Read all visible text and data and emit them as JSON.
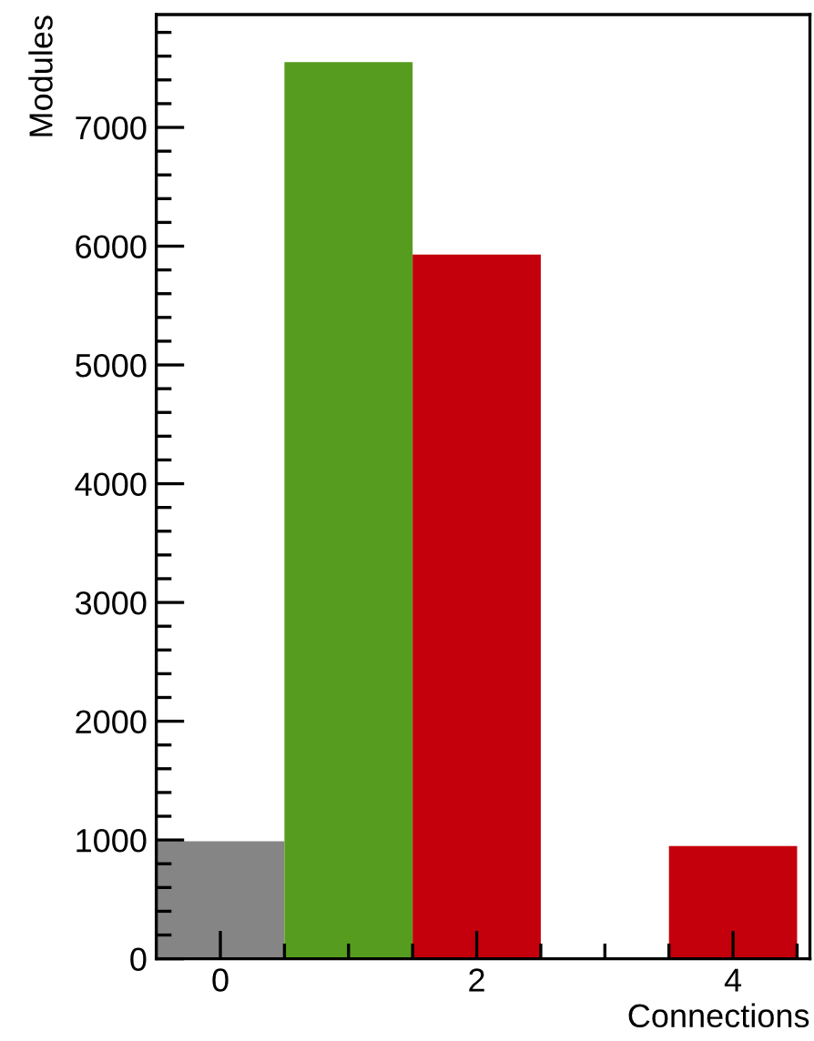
{
  "chart_data": {
    "type": "histogram",
    "xlabel": "Connections",
    "ylabel": "Modules",
    "bins": [
      -0.5,
      0.5,
      1.5,
      2.5,
      3.5,
      4.5
    ],
    "values": [
      990,
      7550,
      5930,
      0,
      950
    ],
    "colors": [
      "#858585",
      "#569c1e",
      "#c3000b",
      "#c3000b",
      "#c3000b"
    ],
    "xlim": [
      -0.5,
      4.6
    ],
    "ylim": [
      0,
      7950
    ],
    "xticks": [
      0,
      2,
      4,
      {
        "value": 0.5,
        "label": null
      },
      {
        "value": 1,
        "label": null
      },
      {
        "value": 1.5,
        "label": null
      },
      {
        "value": 2.5,
        "label": null
      },
      {
        "value": 3,
        "label": null
      },
      {
        "value": 3.5,
        "label": null
      },
      {
        "value": 4.5,
        "label": null
      }
    ],
    "yticks": [
      0,
      1000,
      2000,
      3000,
      4000,
      5000,
      6000,
      7000,
      {
        "value": 200,
        "label": null
      },
      {
        "value": 400,
        "label": null
      },
      {
        "value": 600,
        "label": null
      },
      {
        "value": 800,
        "label": null
      },
      {
        "value": 1200,
        "label": null
      },
      {
        "value": 1400,
        "label": null
      },
      {
        "value": 1600,
        "label": null
      },
      {
        "value": 1800,
        "label": null
      },
      {
        "value": 2200,
        "label": null
      },
      {
        "value": 2400,
        "label": null
      },
      {
        "value": 2600,
        "label": null
      },
      {
        "value": 2800,
        "label": null
      },
      {
        "value": 3200,
        "label": null
      },
      {
        "value": 3400,
        "label": null
      },
      {
        "value": 3600,
        "label": null
      },
      {
        "value": 3800,
        "label": null
      },
      {
        "value": 4200,
        "label": null
      },
      {
        "value": 4400,
        "label": null
      },
      {
        "value": 4600,
        "label": null
      },
      {
        "value": 4800,
        "label": null
      },
      {
        "value": 5200,
        "label": null
      },
      {
        "value": 5400,
        "label": null
      },
      {
        "value": 5600,
        "label": null
      },
      {
        "value": 5800,
        "label": null
      },
      {
        "value": 6200,
        "label": null
      },
      {
        "value": 6400,
        "label": null
      },
      {
        "value": 6600,
        "label": null
      },
      {
        "value": 6800,
        "label": null
      },
      {
        "value": 7200,
        "label": null
      },
      {
        "value": 7400,
        "label": null
      },
      {
        "value": 7600,
        "label": null
      },
      {
        "value": 7800,
        "label": null
      }
    ],
    "grid": false,
    "legend": false
  }
}
